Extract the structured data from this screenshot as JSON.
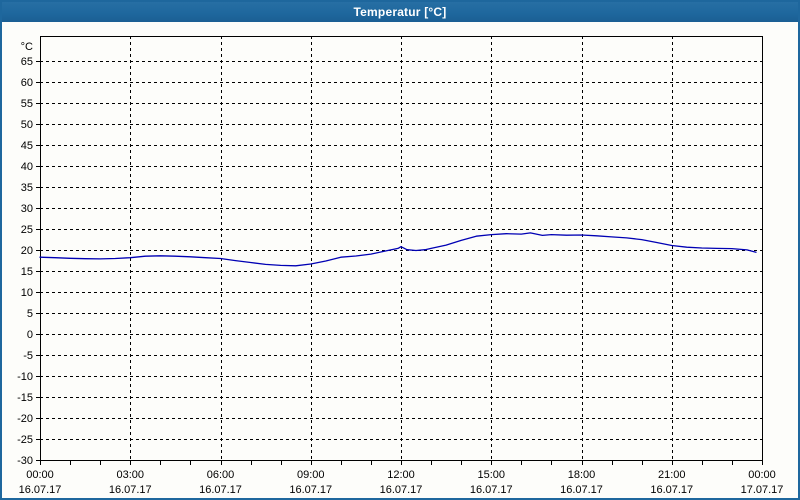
{
  "window": {
    "title": "Temperatur [°C]"
  },
  "colors": {
    "titlebar_bg": "#1e679d",
    "titlebar_text": "#ffffff",
    "window_border": "#1e679d",
    "panel_bg": "#fdfdfa",
    "axis_color": "#000000",
    "grid_color": "#000000",
    "label_color": "#000000",
    "series_color": "#0000b4"
  },
  "chart_data": {
    "type": "line",
    "title": "Temperatur [°C]",
    "ylabel": "°C",
    "ylim": [
      -30,
      71
    ],
    "y_ticks": [
      -30,
      -25,
      -20,
      -15,
      -10,
      -5,
      0,
      5,
      10,
      15,
      20,
      25,
      30,
      35,
      40,
      45,
      50,
      55,
      60,
      65
    ],
    "x_unit": "hours",
    "xlim": [
      0,
      24
    ],
    "x_minor_step": 1,
    "x_major_ticks": [
      {
        "hour": 0,
        "time": "00:00",
        "date": "16.07.17"
      },
      {
        "hour": 3,
        "time": "03:00",
        "date": "16.07.17"
      },
      {
        "hour": 6,
        "time": "06:00",
        "date": "16.07.17"
      },
      {
        "hour": 9,
        "time": "09:00",
        "date": "16.07.17"
      },
      {
        "hour": 12,
        "time": "12:00",
        "date": "16.07.17"
      },
      {
        "hour": 15,
        "time": "15:00",
        "date": "16.07.17"
      },
      {
        "hour": 18,
        "time": "18:00",
        "date": "16.07.17"
      },
      {
        "hour": 21,
        "time": "21:00",
        "date": "16.07.17"
      },
      {
        "hour": 24,
        "time": "00:00",
        "date": "17.07.17"
      }
    ],
    "grid": "dashed",
    "legend": "none",
    "series": [
      {
        "name": "Temperatur",
        "color": "#0000b4",
        "points_hour_degC": [
          [
            0,
            18.3
          ],
          [
            0.5,
            18.2
          ],
          [
            1,
            18.05
          ],
          [
            1.5,
            17.95
          ],
          [
            2,
            17.9
          ],
          [
            2.5,
            18.0
          ],
          [
            3,
            18.2
          ],
          [
            3.5,
            18.55
          ],
          [
            4,
            18.65
          ],
          [
            4.5,
            18.55
          ],
          [
            5,
            18.4
          ],
          [
            5.5,
            18.2
          ],
          [
            6,
            18.0
          ],
          [
            6.5,
            17.5
          ],
          [
            7,
            17.05
          ],
          [
            7.5,
            16.6
          ],
          [
            8,
            16.35
          ],
          [
            8.5,
            16.25
          ],
          [
            9,
            16.7
          ],
          [
            9.5,
            17.4
          ],
          [
            10,
            18.3
          ],
          [
            10.5,
            18.6
          ],
          [
            11,
            19.05
          ],
          [
            11.5,
            19.8
          ],
          [
            11.9,
            20.4
          ],
          [
            12,
            20.8
          ],
          [
            12.2,
            20.1
          ],
          [
            12.5,
            19.9
          ],
          [
            12.8,
            20.1
          ],
          [
            13,
            20.4
          ],
          [
            13.5,
            21.2
          ],
          [
            14,
            22.3
          ],
          [
            14.5,
            23.3
          ],
          [
            15,
            23.7
          ],
          [
            15.5,
            23.9
          ],
          [
            16,
            23.8
          ],
          [
            16.3,
            24.1
          ],
          [
            16.7,
            23.5
          ],
          [
            17,
            23.7
          ],
          [
            17.5,
            23.55
          ],
          [
            18,
            23.6
          ],
          [
            18.5,
            23.4
          ],
          [
            19,
            23.15
          ],
          [
            19.5,
            22.9
          ],
          [
            20,
            22.5
          ],
          [
            20.5,
            21.8
          ],
          [
            21,
            21.1
          ],
          [
            21.5,
            20.7
          ],
          [
            22,
            20.5
          ],
          [
            22.5,
            20.4
          ],
          [
            23,
            20.35
          ],
          [
            23.5,
            20.05
          ],
          [
            23.8,
            19.5
          ]
        ]
      }
    ]
  }
}
